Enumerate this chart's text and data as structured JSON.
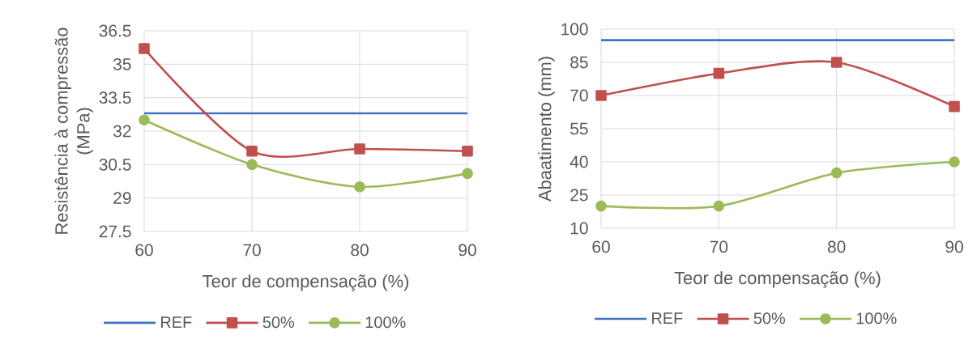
{
  "chart_data": [
    {
      "type": "line",
      "xlabel": "Teor de compensação (%)",
      "ylabel": "Resistência à compressão (MPa)",
      "x": [
        60,
        70,
        80,
        90
      ],
      "xlim": [
        60,
        90
      ],
      "xticks": [
        60,
        70,
        80,
        90
      ],
      "ylim": [
        27.5,
        36.5
      ],
      "yticks": [
        27.5,
        29,
        30.5,
        32,
        33.5,
        35,
        36.5
      ],
      "grid": true,
      "legend": "bottom",
      "series": [
        {
          "name": "REF",
          "color": "#4472c4",
          "marker": "none",
          "values": [
            32.8,
            32.8,
            32.8,
            32.8
          ]
        },
        {
          "name": "50%",
          "color": "#c0504d",
          "marker": "square",
          "values": [
            35.7,
            31.1,
            31.2,
            31.1
          ]
        },
        {
          "name": "100%",
          "color": "#9bbb59",
          "marker": "circle",
          "values": [
            32.5,
            30.5,
            29.5,
            30.1
          ]
        }
      ]
    },
    {
      "type": "line",
      "xlabel": "Teor de compensação (%)",
      "ylabel": "Abaatimento (mm)",
      "x": [
        60,
        70,
        80,
        90
      ],
      "xlim": [
        60,
        90
      ],
      "xticks": [
        60,
        70,
        80,
        90
      ],
      "ylim": [
        10,
        100
      ],
      "yticks": [
        10,
        25,
        40,
        55,
        70,
        85,
        100
      ],
      "grid": true,
      "legend": "bottom",
      "series": [
        {
          "name": "REF",
          "color": "#4472c4",
          "marker": "none",
          "values": [
            95,
            95,
            95,
            95
          ]
        },
        {
          "name": "50%",
          "color": "#c0504d",
          "marker": "square",
          "values": [
            70,
            80,
            85,
            65
          ]
        },
        {
          "name": "100%",
          "color": "#9bbb59",
          "marker": "circle",
          "values": [
            20,
            20,
            35,
            40
          ]
        }
      ]
    }
  ]
}
